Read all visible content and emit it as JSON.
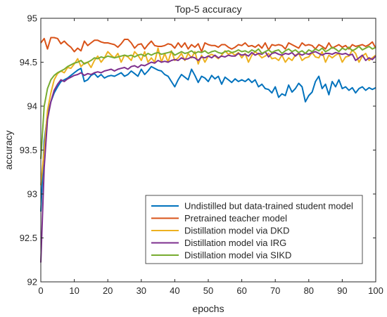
{
  "chart_data": {
    "type": "line",
    "title": "Top-5 accuracy",
    "xlabel": "epochs",
    "ylabel": "accuracy",
    "xlim": [
      0,
      100
    ],
    "ylim": [
      92,
      95
    ],
    "xticks": [
      0,
      10,
      20,
      30,
      40,
      50,
      60,
      70,
      80,
      90,
      100
    ],
    "yticks": [
      92,
      92.5,
      93,
      93.5,
      94,
      94.5,
      95
    ],
    "xtick_labels": [
      "0",
      "10",
      "20",
      "30",
      "40",
      "50",
      "60",
      "70",
      "80",
      "90",
      "100"
    ],
    "ytick_labels": [
      "92",
      "92.5",
      "93",
      "93.5",
      "94",
      "94.5",
      "95"
    ],
    "grid": false,
    "legend_position": "bottom-right",
    "x": [
      0,
      1,
      2,
      3,
      4,
      5,
      6,
      7,
      8,
      9,
      10,
      11,
      12,
      13,
      14,
      15,
      16,
      17,
      18,
      19,
      20,
      21,
      22,
      23,
      24,
      25,
      26,
      27,
      28,
      29,
      30,
      31,
      32,
      33,
      34,
      35,
      36,
      37,
      38,
      39,
      40,
      41,
      42,
      43,
      44,
      45,
      46,
      47,
      48,
      49,
      50,
      51,
      52,
      53,
      54,
      55,
      56,
      57,
      58,
      59,
      60,
      61,
      62,
      63,
      64,
      65,
      66,
      67,
      68,
      69,
      70,
      71,
      72,
      73,
      74,
      75,
      76,
      77,
      78,
      79,
      80,
      81,
      82,
      83,
      84,
      85,
      86,
      87,
      88,
      89,
      90,
      91,
      92,
      93,
      94,
      95,
      96,
      97,
      98,
      99,
      100
    ],
    "series": [
      {
        "name": "Undistilled but data-trained student model",
        "color": "#0072BD",
        "values": [
          92.8,
          93.6,
          93.9,
          94.05,
          94.15,
          94.22,
          94.28,
          94.3,
          94.32,
          94.35,
          94.38,
          94.41,
          94.43,
          94.28,
          94.3,
          94.35,
          94.37,
          94.33,
          94.36,
          94.32,
          94.34,
          94.35,
          94.34,
          94.36,
          94.38,
          94.34,
          94.36,
          94.4,
          94.37,
          94.34,
          94.42,
          94.36,
          94.4,
          94.45,
          94.43,
          94.41,
          94.4,
          94.36,
          94.34,
          94.28,
          94.22,
          94.3,
          94.36,
          94.33,
          94.3,
          94.42,
          94.35,
          94.27,
          94.34,
          94.32,
          94.28,
          94.35,
          94.31,
          94.34,
          94.25,
          94.33,
          94.3,
          94.27,
          94.31,
          94.28,
          94.3,
          94.28,
          94.31,
          94.27,
          94.3,
          94.22,
          94.25,
          94.2,
          94.19,
          94.15,
          94.22,
          94.1,
          94.14,
          94.12,
          94.24,
          94.16,
          94.2,
          94.26,
          94.22,
          94.05,
          94.12,
          94.16,
          94.28,
          94.34,
          94.2,
          94.25,
          94.13,
          94.28,
          94.22,
          94.3,
          94.2,
          94.22,
          94.18,
          94.21,
          94.15,
          94.2,
          94.22,
          94.18,
          94.21,
          94.19,
          94.21
        ]
      },
      {
        "name": "Pretrained teacher model",
        "color": "#D95319",
        "values": [
          94.72,
          94.77,
          94.65,
          94.78,
          94.78,
          94.77,
          94.71,
          94.74,
          94.7,
          94.67,
          94.62,
          94.66,
          94.63,
          94.74,
          94.69,
          94.72,
          94.75,
          94.75,
          94.73,
          94.72,
          94.72,
          94.71,
          94.7,
          94.67,
          94.71,
          94.76,
          94.76,
          94.72,
          94.66,
          94.7,
          94.71,
          94.65,
          94.7,
          94.74,
          94.69,
          94.68,
          94.68,
          94.69,
          94.71,
          94.7,
          94.66,
          94.72,
          94.67,
          94.72,
          94.65,
          94.7,
          94.67,
          94.71,
          94.62,
          94.72,
          94.7,
          94.69,
          94.69,
          94.67,
          94.7,
          94.7,
          94.67,
          94.65,
          94.67,
          94.7,
          94.69,
          94.72,
          94.68,
          94.69,
          94.67,
          94.7,
          94.66,
          94.72,
          94.64,
          94.7,
          94.69,
          94.7,
          94.69,
          94.65,
          94.72,
          94.7,
          94.68,
          94.66,
          94.72,
          94.69,
          94.7,
          94.69,
          94.65,
          94.7,
          94.68,
          94.65,
          94.72,
          94.66,
          94.68,
          94.7,
          94.67,
          94.69,
          94.65,
          94.7,
          94.68,
          94.69,
          94.7,
          94.68,
          94.7,
          94.73,
          94.66
        ]
      },
      {
        "name": "Distillation model via DKD",
        "color": "#EDB120",
        "values": [
          93.1,
          93.5,
          93.95,
          94.15,
          94.3,
          94.37,
          94.4,
          94.38,
          94.44,
          94.43,
          94.48,
          94.54,
          94.45,
          94.49,
          94.5,
          94.44,
          94.52,
          94.57,
          94.5,
          94.55,
          94.62,
          94.58,
          94.55,
          94.6,
          94.5,
          94.58,
          94.56,
          94.52,
          94.62,
          94.58,
          94.52,
          94.62,
          94.5,
          94.55,
          94.5,
          94.66,
          94.5,
          94.6,
          94.5,
          94.63,
          94.52,
          94.55,
          94.6,
          94.52,
          94.6,
          94.55,
          94.62,
          94.48,
          94.58,
          94.5,
          94.57,
          94.59,
          94.57,
          94.54,
          94.58,
          94.63,
          94.59,
          94.61,
          94.58,
          94.61,
          94.55,
          94.6,
          94.5,
          94.58,
          94.62,
          94.59,
          94.55,
          94.57,
          94.6,
          94.54,
          94.55,
          94.52,
          94.58,
          94.5,
          94.55,
          94.52,
          94.58,
          94.6,
          94.52,
          94.55,
          94.56,
          94.61,
          94.56,
          94.55,
          94.62,
          94.5,
          94.58,
          94.55,
          94.58,
          94.6,
          94.5,
          94.56,
          94.57,
          94.64,
          94.6,
          94.5,
          94.57,
          94.6,
          94.52,
          94.55,
          94.58
        ]
      },
      {
        "name": "Distillation model via IRG",
        "color": "#7E2F8E",
        "values": [
          92.22,
          93.3,
          93.85,
          94.05,
          94.18,
          94.25,
          94.3,
          94.28,
          94.31,
          94.33,
          94.35,
          94.36,
          94.38,
          94.35,
          94.37,
          94.36,
          94.38,
          94.39,
          94.38,
          94.4,
          94.41,
          94.42,
          94.4,
          94.42,
          94.43,
          94.44,
          94.42,
          94.45,
          94.46,
          94.44,
          94.47,
          94.46,
          94.48,
          94.5,
          94.49,
          94.52,
          94.5,
          94.51,
          94.5,
          94.52,
          94.53,
          94.52,
          94.55,
          94.53,
          94.54,
          94.56,
          94.55,
          94.52,
          94.56,
          94.55,
          94.57,
          94.55,
          94.58,
          94.55,
          94.57,
          94.56,
          94.58,
          94.57,
          94.57,
          94.6,
          94.58,
          94.59,
          94.57,
          94.61,
          94.58,
          94.6,
          94.59,
          94.62,
          94.56,
          94.6,
          94.61,
          94.59,
          94.58,
          94.6,
          94.59,
          94.61,
          94.57,
          94.6,
          94.58,
          94.6,
          94.59,
          94.61,
          94.62,
          94.6,
          94.58,
          94.6,
          94.6,
          94.59,
          94.61,
          94.6,
          94.59,
          94.6,
          94.58,
          94.59,
          94.52,
          94.55,
          94.58,
          94.52,
          94.55,
          94.53,
          94.57
        ]
      },
      {
        "name": "Distillation model via SIKD",
        "color": "#77AC30",
        "values": [
          93.4,
          94.0,
          94.2,
          94.3,
          94.35,
          94.38,
          94.4,
          94.42,
          94.45,
          94.47,
          94.49,
          94.5,
          94.52,
          94.48,
          94.5,
          94.52,
          94.55,
          94.54,
          94.56,
          94.55,
          94.57,
          94.56,
          94.55,
          94.56,
          94.57,
          94.58,
          94.57,
          94.58,
          94.56,
          94.58,
          94.59,
          94.57,
          94.6,
          94.58,
          94.6,
          94.61,
          94.59,
          94.6,
          94.61,
          94.62,
          94.58,
          94.6,
          94.62,
          94.6,
          94.61,
          94.63,
          94.6,
          94.62,
          94.61,
          94.63,
          94.6,
          94.62,
          94.63,
          94.61,
          94.6,
          94.62,
          94.63,
          94.61,
          94.62,
          94.64,
          94.62,
          94.63,
          94.61,
          94.64,
          94.62,
          94.65,
          94.6,
          94.62,
          94.64,
          94.61,
          94.63,
          94.64,
          94.6,
          94.63,
          94.65,
          94.62,
          94.64,
          94.61,
          94.63,
          94.6,
          94.64,
          94.62,
          94.65,
          94.63,
          94.66,
          94.62,
          94.64,
          94.67,
          94.65,
          94.62,
          94.66,
          94.64,
          94.67,
          94.63,
          94.65,
          94.68,
          94.64,
          94.66,
          94.68,
          94.65,
          94.67
        ]
      }
    ]
  }
}
